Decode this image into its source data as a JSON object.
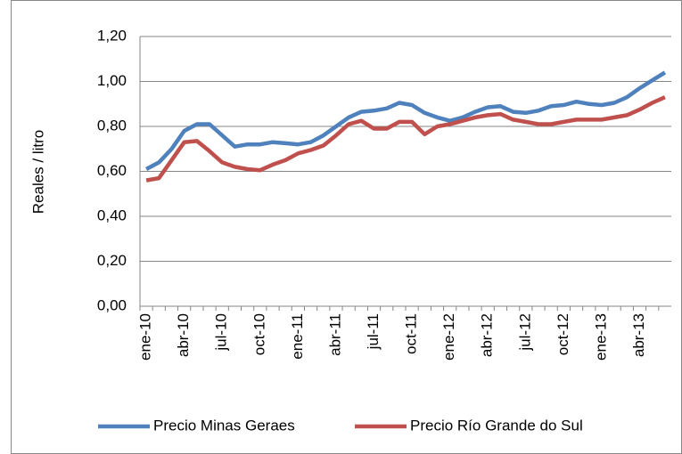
{
  "chart_data": {
    "type": "line",
    "y_label": "Reales / litro",
    "categories": [
      "ene-10",
      null,
      null,
      "abr-10",
      null,
      null,
      "jul-10",
      null,
      null,
      "oct-10",
      null,
      null,
      "ene-11",
      null,
      null,
      "abr-11",
      null,
      null,
      "jul-11",
      null,
      null,
      "oct-11",
      null,
      null,
      "ene-12",
      null,
      null,
      "abr-12",
      null,
      null,
      "jul-12",
      null,
      null,
      "oct-12",
      null,
      null,
      "ene-13",
      null,
      null,
      "abr-13",
      null,
      null
    ],
    "series": [
      {
        "name": "Precio Minas Geraes",
        "color": "#4f81bd",
        "values": [
          0.61,
          0.64,
          0.7,
          0.78,
          0.81,
          0.81,
          0.76,
          0.71,
          0.72,
          0.72,
          0.73,
          0.725,
          0.72,
          0.73,
          0.76,
          0.8,
          0.84,
          0.865,
          0.87,
          0.88,
          0.905,
          0.895,
          0.86,
          0.84,
          0.825,
          0.84,
          0.865,
          0.885,
          0.89,
          0.865,
          0.86,
          0.87,
          0.89,
          0.895,
          0.91,
          0.9,
          0.895,
          0.905,
          0.93,
          0.97,
          1.005,
          1.04
        ]
      },
      {
        "name": "Precio Río Grande do Sul",
        "color": "#c0504d",
        "values": [
          0.56,
          0.57,
          0.65,
          0.73,
          0.735,
          0.69,
          0.64,
          0.62,
          0.61,
          0.605,
          0.63,
          0.65,
          0.68,
          0.695,
          0.715,
          0.76,
          0.81,
          0.825,
          0.79,
          0.79,
          0.82,
          0.82,
          0.765,
          0.8,
          0.81,
          0.825,
          0.84,
          0.85,
          0.855,
          0.83,
          0.82,
          0.81,
          0.81,
          0.82,
          0.83,
          0.83,
          0.83,
          0.84,
          0.85,
          0.875,
          0.905,
          0.93
        ]
      }
    ],
    "ylim": [
      0,
      1.2
    ],
    "yticks": [
      {
        "value": 0,
        "label": "0,00"
      },
      {
        "value": 0.2,
        "label": "0,20"
      },
      {
        "value": 0.4,
        "label": "0,40"
      },
      {
        "value": 0.6,
        "label": "0,60"
      },
      {
        "value": 0.8,
        "label": "0,80"
      },
      {
        "value": 1.0,
        "label": "1,00"
      },
      {
        "value": 1.2,
        "label": "1,20"
      }
    ],
    "grid": true,
    "legend": "bottom"
  }
}
